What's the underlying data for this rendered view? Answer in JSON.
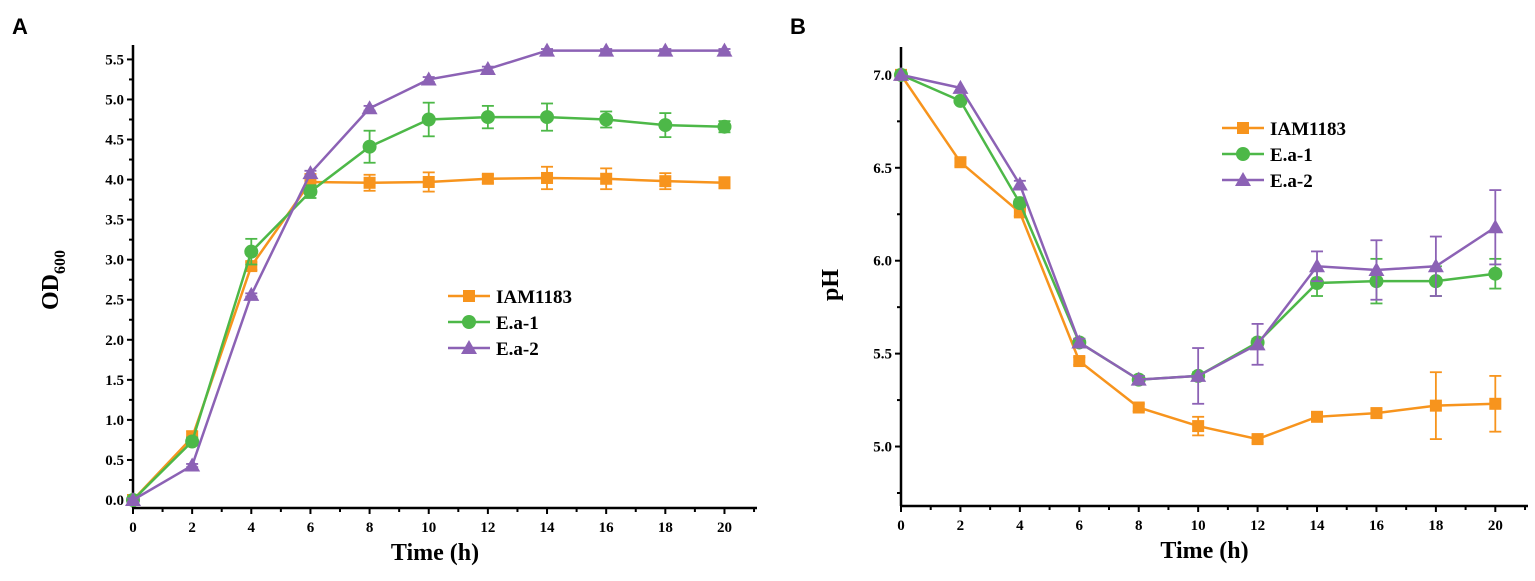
{
  "colors": {
    "IAM1183": "#f7941d",
    "E.a-1": "#4db848",
    "E.a-2": "#8c62b5"
  },
  "chart_data": [
    {
      "panel": "A",
      "type": "line",
      "xlabel": "Time (h)",
      "ylabel": "OD",
      "ylabel_sub": "600",
      "x": [
        0,
        2,
        4,
        6,
        8,
        10,
        12,
        14,
        16,
        18,
        20
      ],
      "xticks": [
        "0",
        "2",
        "4",
        "6",
        "8",
        "10",
        "12",
        "14",
        "16",
        "18",
        "20"
      ],
      "yticks": [
        "0.0",
        "0.5",
        "1.0",
        "1.5",
        "2.0",
        "2.5",
        "3.0",
        "3.5",
        "4.0",
        "4.5",
        "5.0",
        "5.5"
      ],
      "xlim": [
        0,
        21.1
      ],
      "ylim": [
        -0.1,
        5.68
      ],
      "legend_position": "center-right",
      "series": [
        {
          "name": "IAM1183",
          "marker": "square",
          "values": [
            0,
            0.78,
            2.92,
            3.97,
            3.96,
            3.97,
            4.01,
            4.02,
            4.01,
            3.98,
            3.96
          ],
          "errors": [
            0.04,
            0.08,
            0.05,
            0.1,
            0.1,
            0.12,
            0.05,
            0.14,
            0.13,
            0.1,
            0.07
          ]
        },
        {
          "name": "E.a-1",
          "marker": "circle",
          "values": [
            0,
            0.73,
            3.1,
            3.85,
            4.41,
            4.75,
            4.78,
            4.78,
            4.75,
            4.68,
            4.66
          ],
          "errors": [
            0.03,
            0.05,
            0.16,
            0.08,
            0.2,
            0.21,
            0.14,
            0.17,
            0.1,
            0.15,
            0.07
          ]
        },
        {
          "name": "E.a-2",
          "marker": "triangle",
          "values": [
            0,
            0.43,
            2.56,
            4.08,
            4.89,
            5.25,
            5.38,
            5.61,
            5.61,
            5.61,
            5.61
          ],
          "errors": [
            0.02,
            0.02,
            0.02,
            0.03,
            0.03,
            0.03,
            0.03,
            0.02,
            0.02,
            0.02,
            0.02
          ]
        }
      ]
    },
    {
      "panel": "B",
      "type": "line",
      "xlabel": "Time (h)",
      "ylabel": "pH",
      "ylabel_sub": "",
      "x": [
        0,
        2,
        4,
        6,
        8,
        10,
        12,
        14,
        16,
        18,
        20
      ],
      "xticks": [
        "0",
        "2",
        "4",
        "6",
        "8",
        "10",
        "12",
        "14",
        "16",
        "18",
        "20"
      ],
      "yticks": [
        "5.0",
        "5.5",
        "6.0",
        "6.5",
        "7.0"
      ],
      "xlim": [
        0,
        21.1
      ],
      "ylim": [
        4.68,
        7.15
      ],
      "legend_position": "top-right",
      "series": [
        {
          "name": "IAM1183",
          "marker": "square",
          "values": [
            7.0,
            6.53,
            6.26,
            5.46,
            5.21,
            5.11,
            5.04,
            5.16,
            5.18,
            5.22,
            5.23
          ],
          "errors": [
            0.01,
            0.02,
            0.02,
            0.02,
            0.02,
            0.05,
            0.02,
            0.02,
            0.02,
            0.18,
            0.15
          ]
        },
        {
          "name": "E.a-1",
          "marker": "circle",
          "values": [
            7.0,
            6.86,
            6.31,
            5.56,
            5.36,
            5.38,
            5.56,
            5.88,
            5.89,
            5.89,
            5.93
          ],
          "errors": [
            0.0,
            0.01,
            0.02,
            0.02,
            0.02,
            0.02,
            0.02,
            0.07,
            0.12,
            0.08,
            0.08
          ]
        },
        {
          "name": "E.a-2",
          "marker": "triangle",
          "values": [
            7.0,
            6.93,
            6.41,
            5.56,
            5.36,
            5.38,
            5.55,
            5.97,
            5.95,
            5.97,
            6.18
          ],
          "errors": [
            0.0,
            0.01,
            0.02,
            0.02,
            0.02,
            0.15,
            0.11,
            0.08,
            0.16,
            0.16,
            0.2
          ]
        }
      ]
    }
  ]
}
